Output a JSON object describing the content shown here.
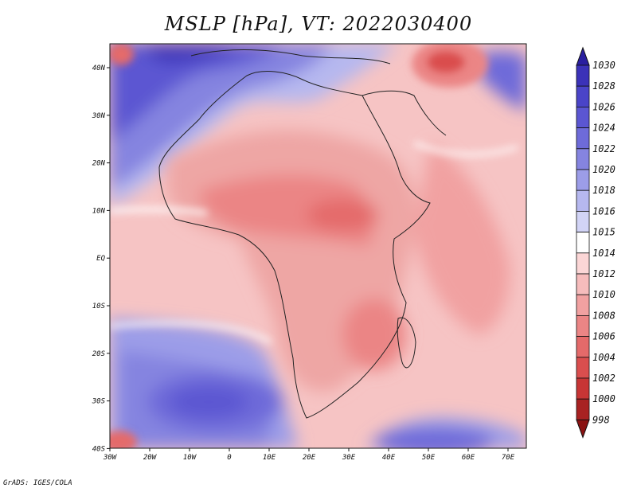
{
  "title": "MSLP [hPa], VT: 2022030400",
  "credit": "GrADS: IGES/COLA",
  "map": {
    "x_ticks": [
      "30W",
      "20W",
      "10W",
      "0",
      "10E",
      "20E",
      "30E",
      "40E",
      "50E",
      "60E",
      "70E"
    ],
    "y_ticks": [
      "40N",
      "30N",
      "20N",
      "10N",
      "EQ",
      "10S",
      "20S",
      "30S",
      "40S"
    ],
    "lon_range": [
      -30,
      75
    ],
    "lat_range": [
      -40,
      45
    ],
    "ocean_base_color": "#f6c4c4",
    "land_base_color": "#eea6a4"
  },
  "colorbar": {
    "levels": [
      "1030",
      "1028",
      "1026",
      "1024",
      "1022",
      "1020",
      "1018",
      "1016",
      "1015",
      "1014",
      "1012",
      "1010",
      "1008",
      "1006",
      "1004",
      "1002",
      "1000",
      "998"
    ],
    "colors": [
      "#2a1fa0",
      "#3b32b8",
      "#4a44c8",
      "#5b56d2",
      "#6e6bd9",
      "#8584e0",
      "#9c9de8",
      "#b6b8ef",
      "#d2d4f6",
      "#ffffff",
      "#fbd6d6",
      "#f6bcbc",
      "#f1a1a1",
      "#eb8585",
      "#e46a6a",
      "#da4e4e",
      "#c73535",
      "#a82222",
      "#8a1212"
    ]
  }
}
